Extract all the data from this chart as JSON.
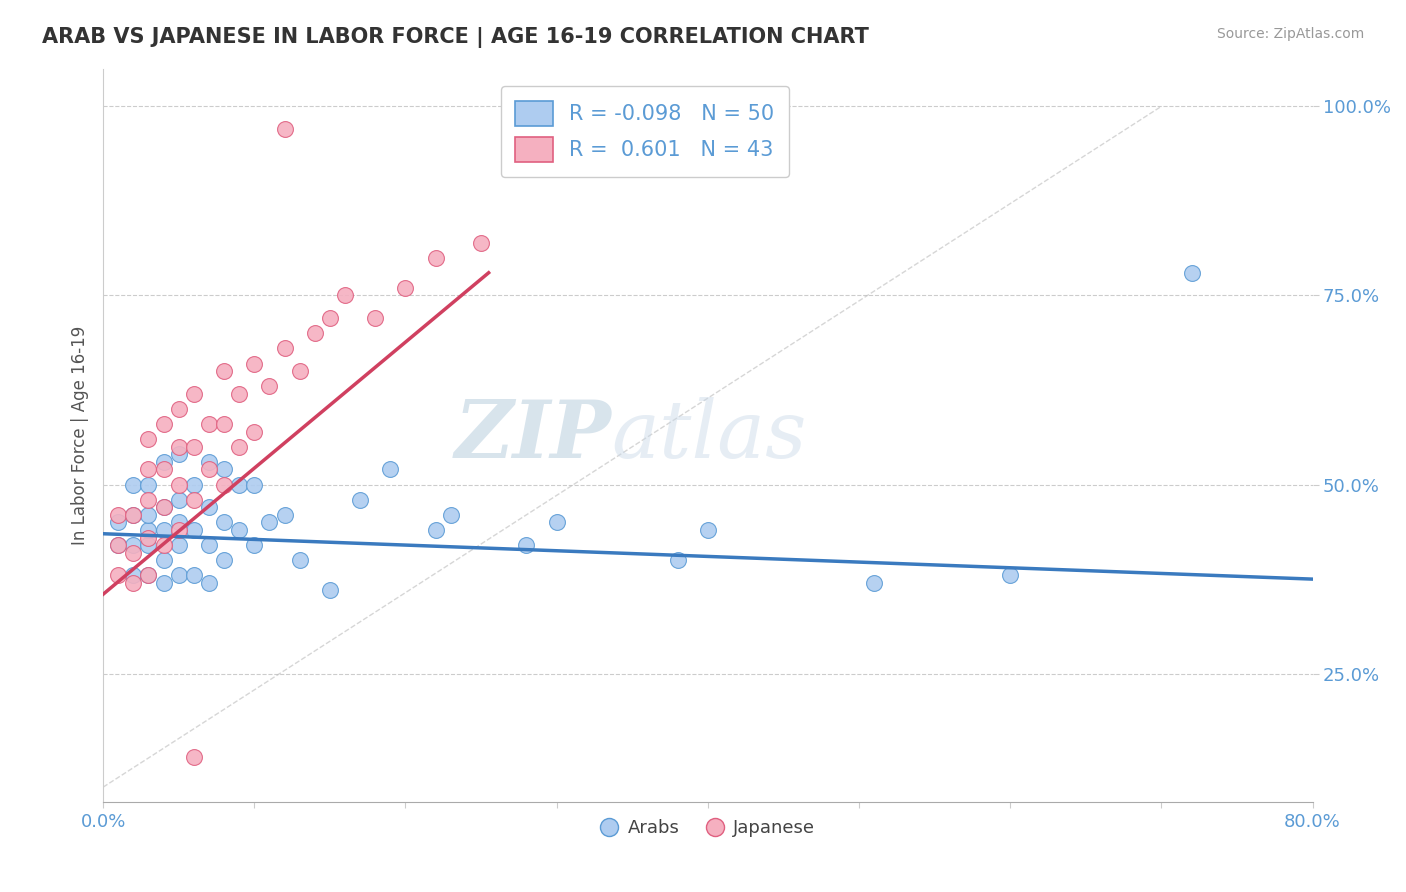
{
  "title": "ARAB VS JAPANESE IN LABOR FORCE | AGE 16-19 CORRELATION CHART",
  "source": "Source: ZipAtlas.com",
  "ylabel": "In Labor Force | Age 16-19",
  "xlim": [
    0.0,
    0.8
  ],
  "ylim": [
    0.08,
    1.05
  ],
  "yticks": [
    0.25,
    0.5,
    0.75,
    1.0
  ],
  "ytick_labels": [
    "25.0%",
    "50.0%",
    "75.0%",
    "100.0%"
  ],
  "xticks": [
    0.0,
    0.1,
    0.2,
    0.3,
    0.4,
    0.5,
    0.6,
    0.7,
    0.8
  ],
  "xtick_labels": [
    "0.0%",
    "",
    "",
    "",
    "",
    "",
    "",
    "",
    "80.0%"
  ],
  "arab_color": "#aeccf0",
  "japanese_color": "#f5b0c0",
  "arab_edge_color": "#5b9bd5",
  "japanese_edge_color": "#e06080",
  "trend_arab_color": "#3a7abf",
  "trend_japanese_color": "#d04060",
  "ref_line_color": "#bbbbbb",
  "legend_arab_r": "-0.098",
  "legend_arab_n": "50",
  "legend_japanese_r": "0.601",
  "legend_japanese_n": "43",
  "background_color": "#ffffff",
  "grid_color": "#cccccc",
  "title_color": "#333333",
  "axis_label_color": "#5b9bd5",
  "watermark_zip": "ZIP",
  "watermark_atlas": "atlas",
  "arab_x": [
    0.01,
    0.01,
    0.02,
    0.02,
    0.02,
    0.02,
    0.03,
    0.03,
    0.03,
    0.03,
    0.03,
    0.04,
    0.04,
    0.04,
    0.04,
    0.04,
    0.05,
    0.05,
    0.05,
    0.05,
    0.05,
    0.06,
    0.06,
    0.06,
    0.07,
    0.07,
    0.07,
    0.07,
    0.08,
    0.08,
    0.08,
    0.09,
    0.09,
    0.1,
    0.1,
    0.11,
    0.12,
    0.13,
    0.15,
    0.17,
    0.19,
    0.22,
    0.23,
    0.28,
    0.3,
    0.38,
    0.4,
    0.51,
    0.6,
    0.72
  ],
  "arab_y": [
    0.42,
    0.45,
    0.38,
    0.42,
    0.46,
    0.5,
    0.38,
    0.42,
    0.44,
    0.46,
    0.5,
    0.37,
    0.4,
    0.44,
    0.47,
    0.53,
    0.38,
    0.42,
    0.45,
    0.48,
    0.54,
    0.38,
    0.44,
    0.5,
    0.37,
    0.42,
    0.47,
    0.53,
    0.4,
    0.45,
    0.52,
    0.44,
    0.5,
    0.42,
    0.5,
    0.45,
    0.46,
    0.4,
    0.36,
    0.48,
    0.52,
    0.44,
    0.46,
    0.42,
    0.45,
    0.4,
    0.44,
    0.37,
    0.38,
    0.78
  ],
  "japanese_x": [
    0.01,
    0.01,
    0.01,
    0.02,
    0.02,
    0.02,
    0.03,
    0.03,
    0.03,
    0.03,
    0.03,
    0.04,
    0.04,
    0.04,
    0.04,
    0.05,
    0.05,
    0.05,
    0.05,
    0.06,
    0.06,
    0.06,
    0.07,
    0.07,
    0.08,
    0.08,
    0.08,
    0.09,
    0.09,
    0.1,
    0.1,
    0.11,
    0.12,
    0.13,
    0.14,
    0.15,
    0.16,
    0.18,
    0.2,
    0.22,
    0.25,
    0.12,
    0.06
  ],
  "japanese_y": [
    0.38,
    0.42,
    0.46,
    0.37,
    0.41,
    0.46,
    0.38,
    0.43,
    0.48,
    0.52,
    0.56,
    0.42,
    0.47,
    0.52,
    0.58,
    0.44,
    0.5,
    0.55,
    0.6,
    0.48,
    0.55,
    0.62,
    0.52,
    0.58,
    0.5,
    0.58,
    0.65,
    0.55,
    0.62,
    0.57,
    0.66,
    0.63,
    0.68,
    0.65,
    0.7,
    0.72,
    0.75,
    0.72,
    0.76,
    0.8,
    0.82,
    0.97,
    0.14
  ],
  "arab_trend_x0": 0.0,
  "arab_trend_x1": 0.8,
  "arab_trend_y0": 0.435,
  "arab_trend_y1": 0.375,
  "jp_trend_x0": 0.0,
  "jp_trend_x1": 0.255,
  "jp_trend_y0": 0.355,
  "jp_trend_y1": 0.78
}
